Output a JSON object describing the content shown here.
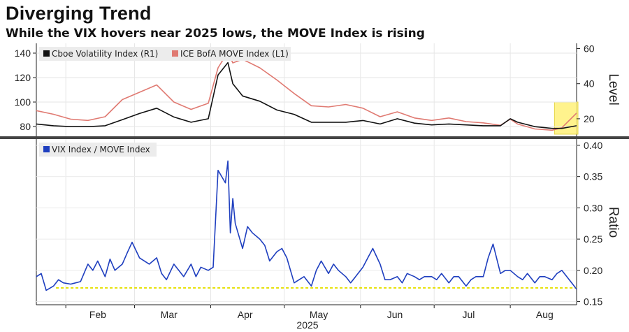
{
  "title": "Diverging Trend",
  "subtitle": "While the VIX hovers near 2025 lows, the MOVE Index is rising",
  "colors": {
    "vix": "#111111",
    "move": "#e07a72",
    "ratio": "#1f3fbf",
    "threshold": "#e6e000",
    "highlight": "#fff27a"
  },
  "chart_data": [
    {
      "type": "line",
      "x_start": "2025-01-20",
      "x_end": "2025-08-28",
      "x_ticks": [
        "Feb",
        "Mar",
        "Apr",
        "May",
        "Jun",
        "Jul",
        "Aug"
      ],
      "x_year_label": "2025",
      "left_axis": {
        "ticks": [
          "80",
          "100",
          "120",
          "140"
        ],
        "ylim": [
          72,
          148
        ]
      },
      "right_axis": {
        "ticks": [
          "20",
          "40",
          "60"
        ],
        "ylim": [
          10,
          63
        ],
        "label": "Level"
      },
      "series": [
        {
          "name": "Cboe Volatility Index (R1)",
          "axis": "right",
          "x": [
            "2025-01-20",
            "2025-01-27",
            "2025-02-03",
            "2025-02-10",
            "2025-02-17",
            "2025-02-24",
            "2025-03-03",
            "2025-03-10",
            "2025-03-17",
            "2025-03-24",
            "2025-03-31",
            "2025-04-04",
            "2025-04-08",
            "2025-04-10",
            "2025-04-14",
            "2025-04-21",
            "2025-04-28",
            "2025-05-05",
            "2025-05-12",
            "2025-05-19",
            "2025-05-26",
            "2025-06-02",
            "2025-06-09",
            "2025-06-16",
            "2025-06-23",
            "2025-06-30",
            "2025-07-07",
            "2025-07-14",
            "2025-07-21",
            "2025-07-28",
            "2025-08-01",
            "2025-08-04",
            "2025-08-11",
            "2025-08-18",
            "2025-08-22",
            "2025-08-28"
          ],
          "values": [
            17,
            16,
            15.5,
            15.5,
            16,
            19.5,
            23,
            26,
            21,
            18,
            20,
            45,
            52,
            40,
            33,
            30,
            25,
            22.5,
            18,
            18,
            18,
            19,
            17,
            20,
            17.5,
            16.5,
            17,
            16.5,
            16,
            16,
            20,
            18,
            15.5,
            14.5,
            14.5,
            16
          ]
        },
        {
          "name": "ICE BofA MOVE Index (L1)",
          "axis": "left",
          "x": [
            "2025-01-20",
            "2025-01-27",
            "2025-02-03",
            "2025-02-10",
            "2025-02-17",
            "2025-02-24",
            "2025-03-03",
            "2025-03-10",
            "2025-03-17",
            "2025-03-24",
            "2025-03-31",
            "2025-04-04",
            "2025-04-08",
            "2025-04-10",
            "2025-04-14",
            "2025-04-21",
            "2025-04-28",
            "2025-05-05",
            "2025-05-12",
            "2025-05-19",
            "2025-05-26",
            "2025-06-02",
            "2025-06-09",
            "2025-06-16",
            "2025-06-23",
            "2025-06-30",
            "2025-07-07",
            "2025-07-14",
            "2025-07-21",
            "2025-07-28",
            "2025-08-01",
            "2025-08-04",
            "2025-08-11",
            "2025-08-18",
            "2025-08-22",
            "2025-08-28"
          ],
          "values": [
            93,
            90,
            86,
            85,
            88,
            102,
            108,
            114,
            100,
            94,
            99,
            128,
            141,
            132,
            135,
            128,
            118,
            107,
            97,
            96,
            98,
            95,
            88,
            92,
            87,
            85,
            87,
            84,
            83,
            81,
            86,
            82,
            78,
            77,
            79,
            91
          ]
        }
      ]
    },
    {
      "type": "line",
      "x_start": "2025-01-20",
      "x_end": "2025-08-28",
      "right_axis": {
        "ticks": [
          "0.15",
          "0.20",
          "0.25",
          "0.30",
          "0.35",
          "0.40"
        ],
        "ylim": [
          0.145,
          0.41
        ],
        "label": "Ratio"
      },
      "threshold": 0.172,
      "series": [
        {
          "name": "VIX Index / MOVE Index",
          "x": [
            "2025-01-20",
            "2025-01-22",
            "2025-01-24",
            "2025-01-27",
            "2025-01-29",
            "2025-01-31",
            "2025-02-03",
            "2025-02-05",
            "2025-02-07",
            "2025-02-10",
            "2025-02-12",
            "2025-02-14",
            "2025-02-17",
            "2025-02-19",
            "2025-02-21",
            "2025-02-24",
            "2025-02-26",
            "2025-02-28",
            "2025-03-03",
            "2025-03-05",
            "2025-03-07",
            "2025-03-10",
            "2025-03-12",
            "2025-03-14",
            "2025-03-17",
            "2025-03-19",
            "2025-03-21",
            "2025-03-24",
            "2025-03-26",
            "2025-03-28",
            "2025-03-31",
            "2025-04-02",
            "2025-04-04",
            "2025-04-07",
            "2025-04-08",
            "2025-04-09",
            "2025-04-10",
            "2025-04-11",
            "2025-04-14",
            "2025-04-16",
            "2025-04-18",
            "2025-04-21",
            "2025-04-23",
            "2025-04-25",
            "2025-04-28",
            "2025-04-30",
            "2025-05-02",
            "2025-05-05",
            "2025-05-07",
            "2025-05-09",
            "2025-05-12",
            "2025-05-14",
            "2025-05-16",
            "2025-05-19",
            "2025-05-21",
            "2025-05-23",
            "2025-05-26",
            "2025-05-28",
            "2025-05-30",
            "2025-06-02",
            "2025-06-04",
            "2025-06-06",
            "2025-06-09",
            "2025-06-11",
            "2025-06-13",
            "2025-06-16",
            "2025-06-18",
            "2025-06-20",
            "2025-06-23",
            "2025-06-25",
            "2025-06-27",
            "2025-06-30",
            "2025-07-02",
            "2025-07-04",
            "2025-07-07",
            "2025-07-09",
            "2025-07-11",
            "2025-07-14",
            "2025-07-16",
            "2025-07-18",
            "2025-07-21",
            "2025-07-23",
            "2025-07-25",
            "2025-07-28",
            "2025-07-30",
            "2025-08-01",
            "2025-08-04",
            "2025-08-06",
            "2025-08-08",
            "2025-08-11",
            "2025-08-13",
            "2025-08-15",
            "2025-08-18",
            "2025-08-20",
            "2025-08-22",
            "2025-08-25",
            "2025-08-28"
          ],
          "values": [
            0.19,
            0.195,
            0.168,
            0.175,
            0.185,
            0.18,
            0.178,
            0.18,
            0.182,
            0.21,
            0.2,
            0.215,
            0.19,
            0.218,
            0.2,
            0.21,
            0.228,
            0.245,
            0.22,
            0.215,
            0.21,
            0.22,
            0.195,
            0.185,
            0.21,
            0.2,
            0.19,
            0.21,
            0.19,
            0.205,
            0.2,
            0.205,
            0.36,
            0.34,
            0.375,
            0.26,
            0.315,
            0.275,
            0.235,
            0.27,
            0.26,
            0.25,
            0.24,
            0.215,
            0.23,
            0.235,
            0.22,
            0.18,
            0.185,
            0.19,
            0.175,
            0.2,
            0.215,
            0.195,
            0.21,
            0.2,
            0.19,
            0.18,
            0.19,
            0.205,
            0.22,
            0.235,
            0.21,
            0.185,
            0.185,
            0.19,
            0.18,
            0.195,
            0.19,
            0.185,
            0.19,
            0.19,
            0.185,
            0.195,
            0.18,
            0.19,
            0.19,
            0.175,
            0.185,
            0.19,
            0.19,
            0.22,
            0.242,
            0.195,
            0.2,
            0.2,
            0.19,
            0.185,
            0.195,
            0.18,
            0.19,
            0.19,
            0.185,
            0.195,
            0.2,
            0.185,
            0.17
          ]
        }
      ]
    }
  ]
}
